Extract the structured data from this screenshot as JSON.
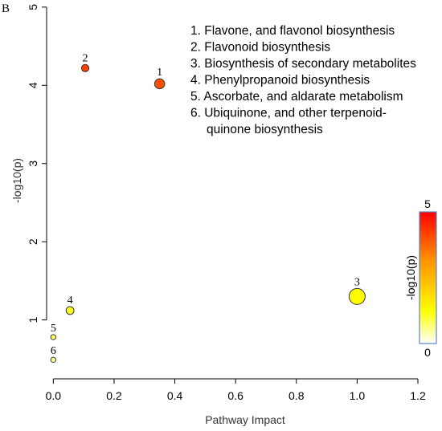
{
  "panel_label": "B",
  "chart_data": {
    "type": "scatter",
    "title": "",
    "xlabel": "Pathway Impact",
    "ylabel": "-log10(p)",
    "xlim": [
      -0.03,
      1.2
    ],
    "ylim": [
      0.37,
      5.05
    ],
    "xticks": [
      0.0,
      0.2,
      0.4,
      0.6,
      0.8,
      1.0,
      1.2
    ],
    "yticks": [
      1,
      2,
      3,
      4,
      5
    ],
    "grid": false,
    "points": [
      {
        "label": "1",
        "x": 0.35,
        "y": 4.02,
        "size": 0.45
      },
      {
        "label": "2",
        "x": 0.105,
        "y": 4.22,
        "size": 0.2
      },
      {
        "label": "3",
        "x": 1.0,
        "y": 1.3,
        "size": 1.0
      },
      {
        "label": "4",
        "x": 0.055,
        "y": 1.12,
        "size": 0.25
      },
      {
        "label": "5",
        "x": 0.0,
        "y": 0.78,
        "size": 0.0
      },
      {
        "label": "6",
        "x": 0.0,
        "y": 0.49,
        "size": 0.0
      }
    ],
    "legend": {
      "placement": "top-right",
      "entries": [
        "1. Flavone, and flavonol biosynthesis",
        "2. Flavonoid biosynthesis",
        "3. Biosynthesis of secondary metabolites",
        "4. Phenylpropanoid biosynthesis",
        "5. Ascorbate, and aldarate metabolism",
        "6. Ubiquinone, and other terpenoid-",
        "quinone biosynthesis"
      ]
    },
    "colorbar": {
      "label": "-log10(p)",
      "min": 0,
      "max": 5,
      "min_label": "0",
      "max_label": "5",
      "colors": [
        "#ffffff",
        "#ffff00",
        "#ff8c00",
        "#ff0000"
      ]
    }
  }
}
